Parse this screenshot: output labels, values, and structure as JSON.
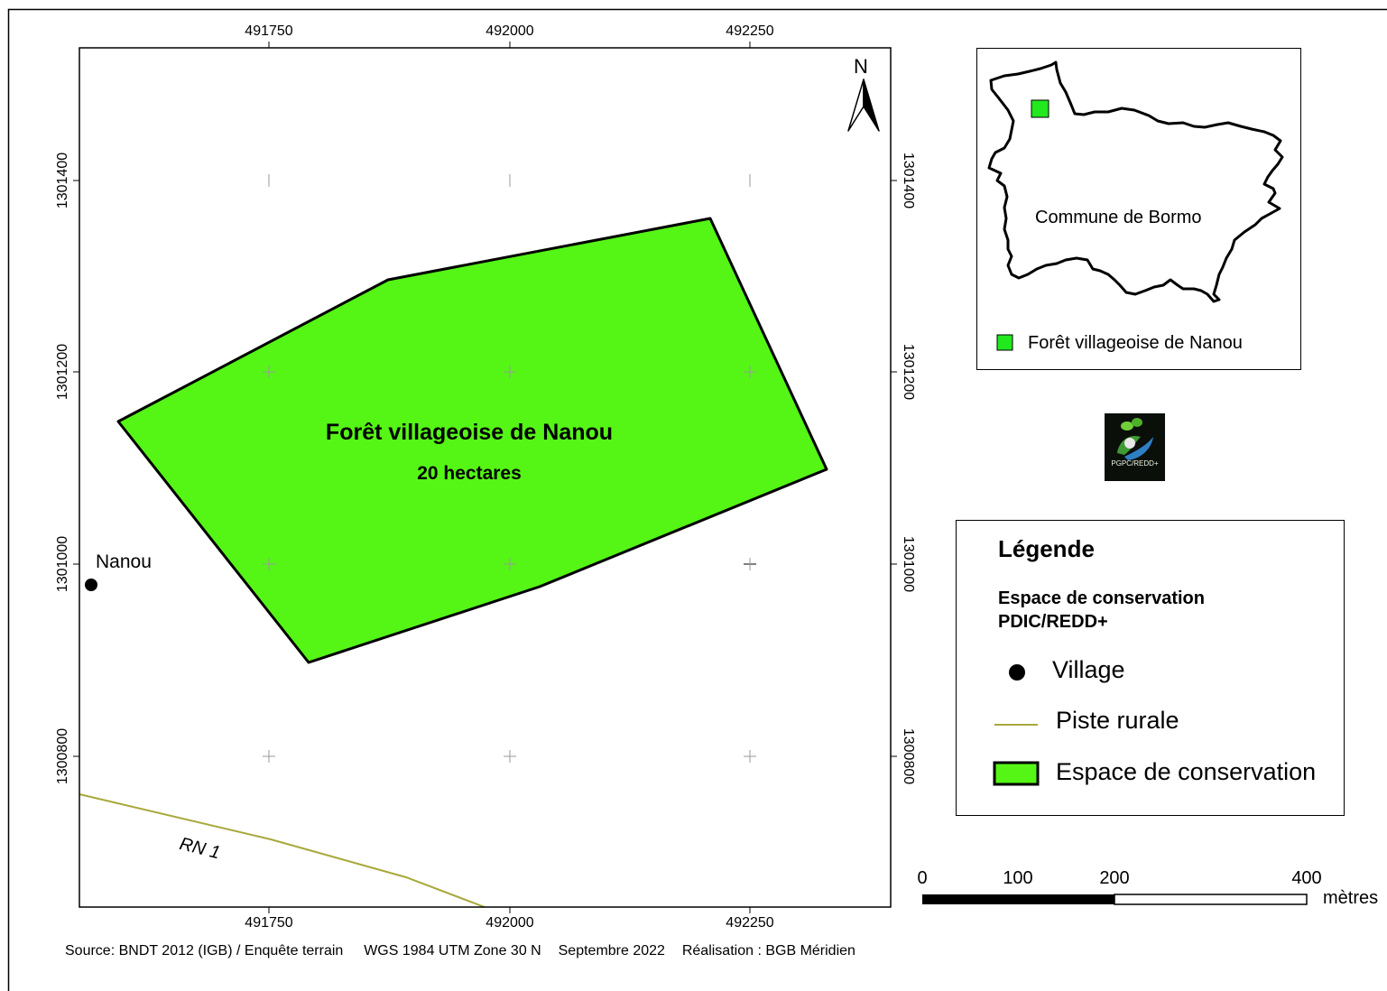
{
  "map": {
    "x_ticks": [
      "491750",
      "492000",
      "492250"
    ],
    "y_ticks": [
      "1301400",
      "1301200",
      "1301000",
      "1300800"
    ],
    "north_label": "N",
    "forest_name": "Forêt villageoise de Nanou",
    "forest_area": "20 hectares",
    "village_name": "Nanou",
    "road_label": "RN 1",
    "forest_color": "#55f516",
    "road_color": "#a8a83c"
  },
  "inset": {
    "commune_label": "Commune de Bormo",
    "marker_label": "Forêt villageoise de Nanou",
    "marker_color": "#22e81e"
  },
  "logo": {
    "text": "PGPC/REDD+"
  },
  "legend": {
    "title": "Légende",
    "subtitle_line1": "Espace de conservation",
    "subtitle_line2": "PDIC/REDD+",
    "items": [
      {
        "label": "Village",
        "icon": "village-dot-icon"
      },
      {
        "label": "Piste rurale",
        "icon": "road-line-icon"
      },
      {
        "label": "Espace de conservation",
        "icon": "conservation-swatch-icon"
      }
    ]
  },
  "scale_bar": {
    "labels": [
      "0",
      "100",
      "200",
      "400"
    ],
    "unit": "mètres"
  },
  "footer": {
    "source": "Source: BNDT 2012 (IGB) / Enquête terrain",
    "projection": "WGS 1984 UTM Zone 30 N",
    "date": "Septembre 2022",
    "author": "Réalisation : BGB Méridien"
  }
}
